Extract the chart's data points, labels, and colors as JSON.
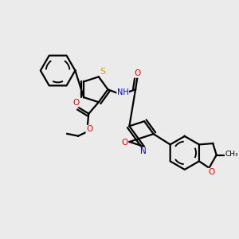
{
  "bg_color": "#ebebeb",
  "atom_colors": {
    "S": "#ccaa00",
    "N": "#0000ff",
    "O": "#ff0000",
    "C": "#000000",
    "H": "#888888"
  },
  "bond_color": "#000000"
}
